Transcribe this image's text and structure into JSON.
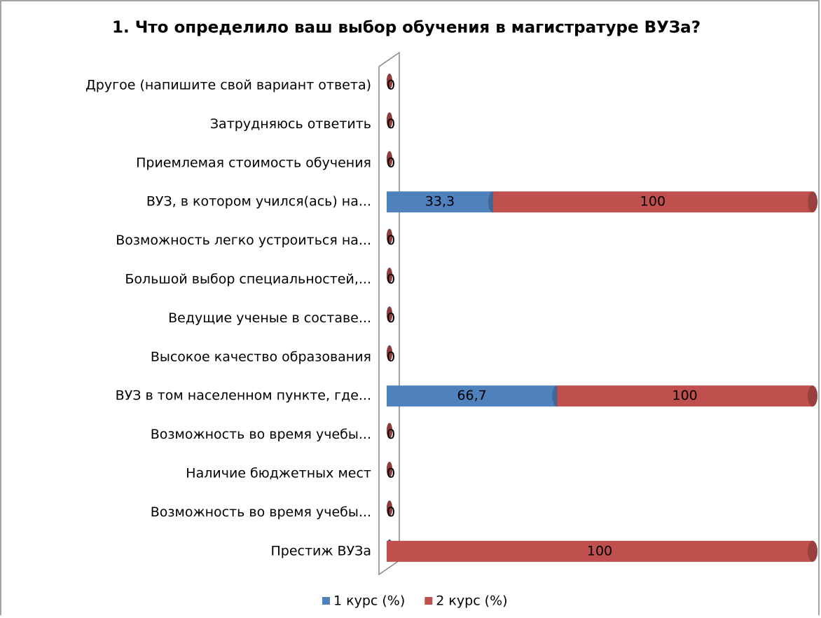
{
  "chart_data": {
    "type": "bar",
    "orientation": "horizontal",
    "stacking": "percent",
    "title": "1. Что определило ваш выбор обучения в магистратуре ВУЗа?",
    "categories": [
      "Другое (напишите свой вариант ответа)",
      "Затрудняюсь ответить",
      "Приемлемая стоимость обучения",
      "ВУЗ, в котором учился(ась) на...",
      "Возможность легко устроиться на...",
      "Большой выбор специальностей,...",
      "Ведущие ученые в составе...",
      "Высокое качество образования",
      "ВУЗ в том населенном пункте, где...",
      "Возможность во время учебы...",
      "Наличие бюджетных мест",
      "Возможность во время учебы...",
      "Престиж ВУЗа"
    ],
    "series": [
      {
        "name": "1 курс (%)",
        "color": "#4f81bd",
        "values": [
          0,
          0,
          0,
          33.3,
          0,
          0,
          0,
          0,
          66.7,
          0,
          0,
          0,
          0
        ],
        "value_labels": [
          "0",
          "0",
          "0",
          "33,3",
          "0",
          "0",
          "0",
          "0",
          "66,7",
          "0",
          "0",
          "0",
          "0"
        ]
      },
      {
        "name": "2 курс (%)",
        "color": "#c0504d",
        "values": [
          0,
          0,
          0,
          100,
          0,
          0,
          0,
          0,
          100,
          0,
          0,
          0,
          100
        ]
      }
    ],
    "legend": "bottom"
  }
}
